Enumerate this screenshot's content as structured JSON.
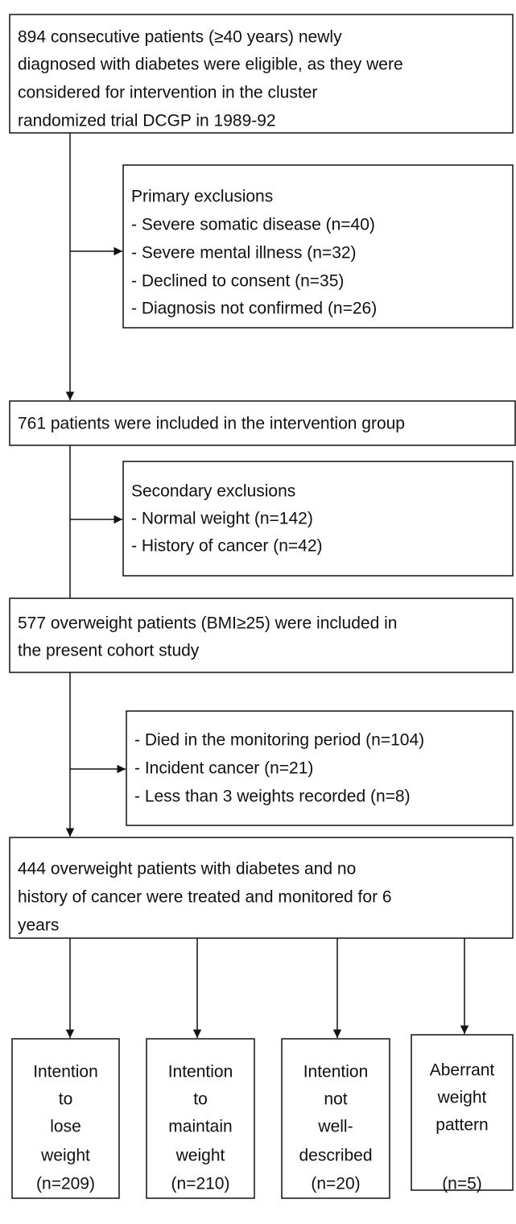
{
  "boxes": [
    {
      "lines": [
        "894 consecutive patients (≥40 years) newly",
        "diagnosed with diabetes were eligible, as they were",
        "considered for intervention in the cluster",
        "randomized trial DCGP in 1989-92"
      ]
    },
    {
      "lines": [
        "Primary exclusions",
        "- Severe somatic disease (n=40)",
        "- Severe mental illness (n=32)",
        "- Declined to consent (n=35)",
        "- Diagnosis not confirmed (n=26)"
      ]
    },
    {
      "lines": [
        "761 patients were included in the intervention group"
      ]
    },
    {
      "lines": [
        "Secondary exclusions",
        "- Normal weight (n=142)",
        "- History of cancer (n=42)"
      ]
    },
    {
      "lines": [
        "577 overweight patients (BMI≥25) were included in",
        "the present cohort study"
      ]
    },
    {
      "lines": [
        "- Died in the monitoring period (n=104)",
        "- Incident cancer (n=21)",
        "- Less than 3 weights recorded (n=8)"
      ]
    },
    {
      "lines": [
        "444 overweight patients with diabetes and no",
        "history of cancer were treated and monitored for 6",
        "years"
      ]
    },
    {
      "lines": [
        "Intention",
        "to",
        "lose",
        "weight",
        "(n=209)"
      ]
    },
    {
      "lines": [
        "Intention",
        "to",
        "maintain",
        "weight",
        "(n=210)"
      ]
    },
    {
      "lines": [
        "Intention",
        "not",
        "well-",
        "described",
        "(n=20)"
      ]
    },
    {
      "lines": [
        "Aberrant",
        "weight",
        "pattern",
        "(n=5)"
      ]
    }
  ]
}
